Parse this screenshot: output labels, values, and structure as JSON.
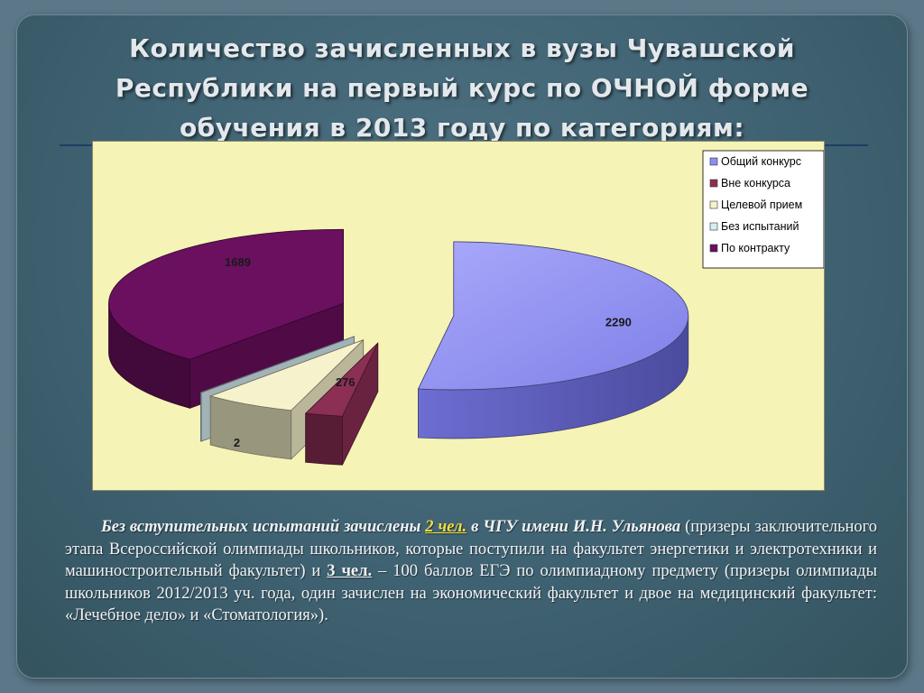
{
  "slide": {
    "title_lines": [
      "Количество зачисленных в вузы Чувашской",
      "Республики на первый курс по ОЧНОЙ форме",
      "обучения в 2013 году по категориям:"
    ]
  },
  "chart_data": {
    "type": "pie",
    "style": "3d-exploded",
    "legend_position": "top-right",
    "slices": [
      {
        "name": "Общий конкурс",
        "value": 2290,
        "color": "#8e8ef2"
      },
      {
        "name": "Вне конкурса",
        "value": 112,
        "color": "#8c2f55"
      },
      {
        "name": "Целевой прием",
        "value": 276,
        "color": "#f6f2cc"
      },
      {
        "name": "Без испытаний",
        "value": 2,
        "color": "#d6eef2"
      },
      {
        "name": "По контракту",
        "value": 1689,
        "color": "#6b0f5f"
      }
    ]
  },
  "body": {
    "lead": "Без вступительных испытаний зачислены",
    "num1": "2 чел.",
    "lead_tail": "в ЧГУ имени И.Н. Ульянова",
    "rest1": "(призеры заключительного этапа Всероссийской олимпиады школьников, которые поступили на факультет энергетики и электротехники и машиностроительный факультет) и",
    "num2": "3 чел.",
    "rest2": "– 100 баллов ЕГЭ по олимпиадному предмету (призеры олимпиады школьников 2012/2013 уч. года, один зачислен на экономический факультет и двое на медицинский факультет: «Лечебное дело» и «Стоматология»)."
  }
}
